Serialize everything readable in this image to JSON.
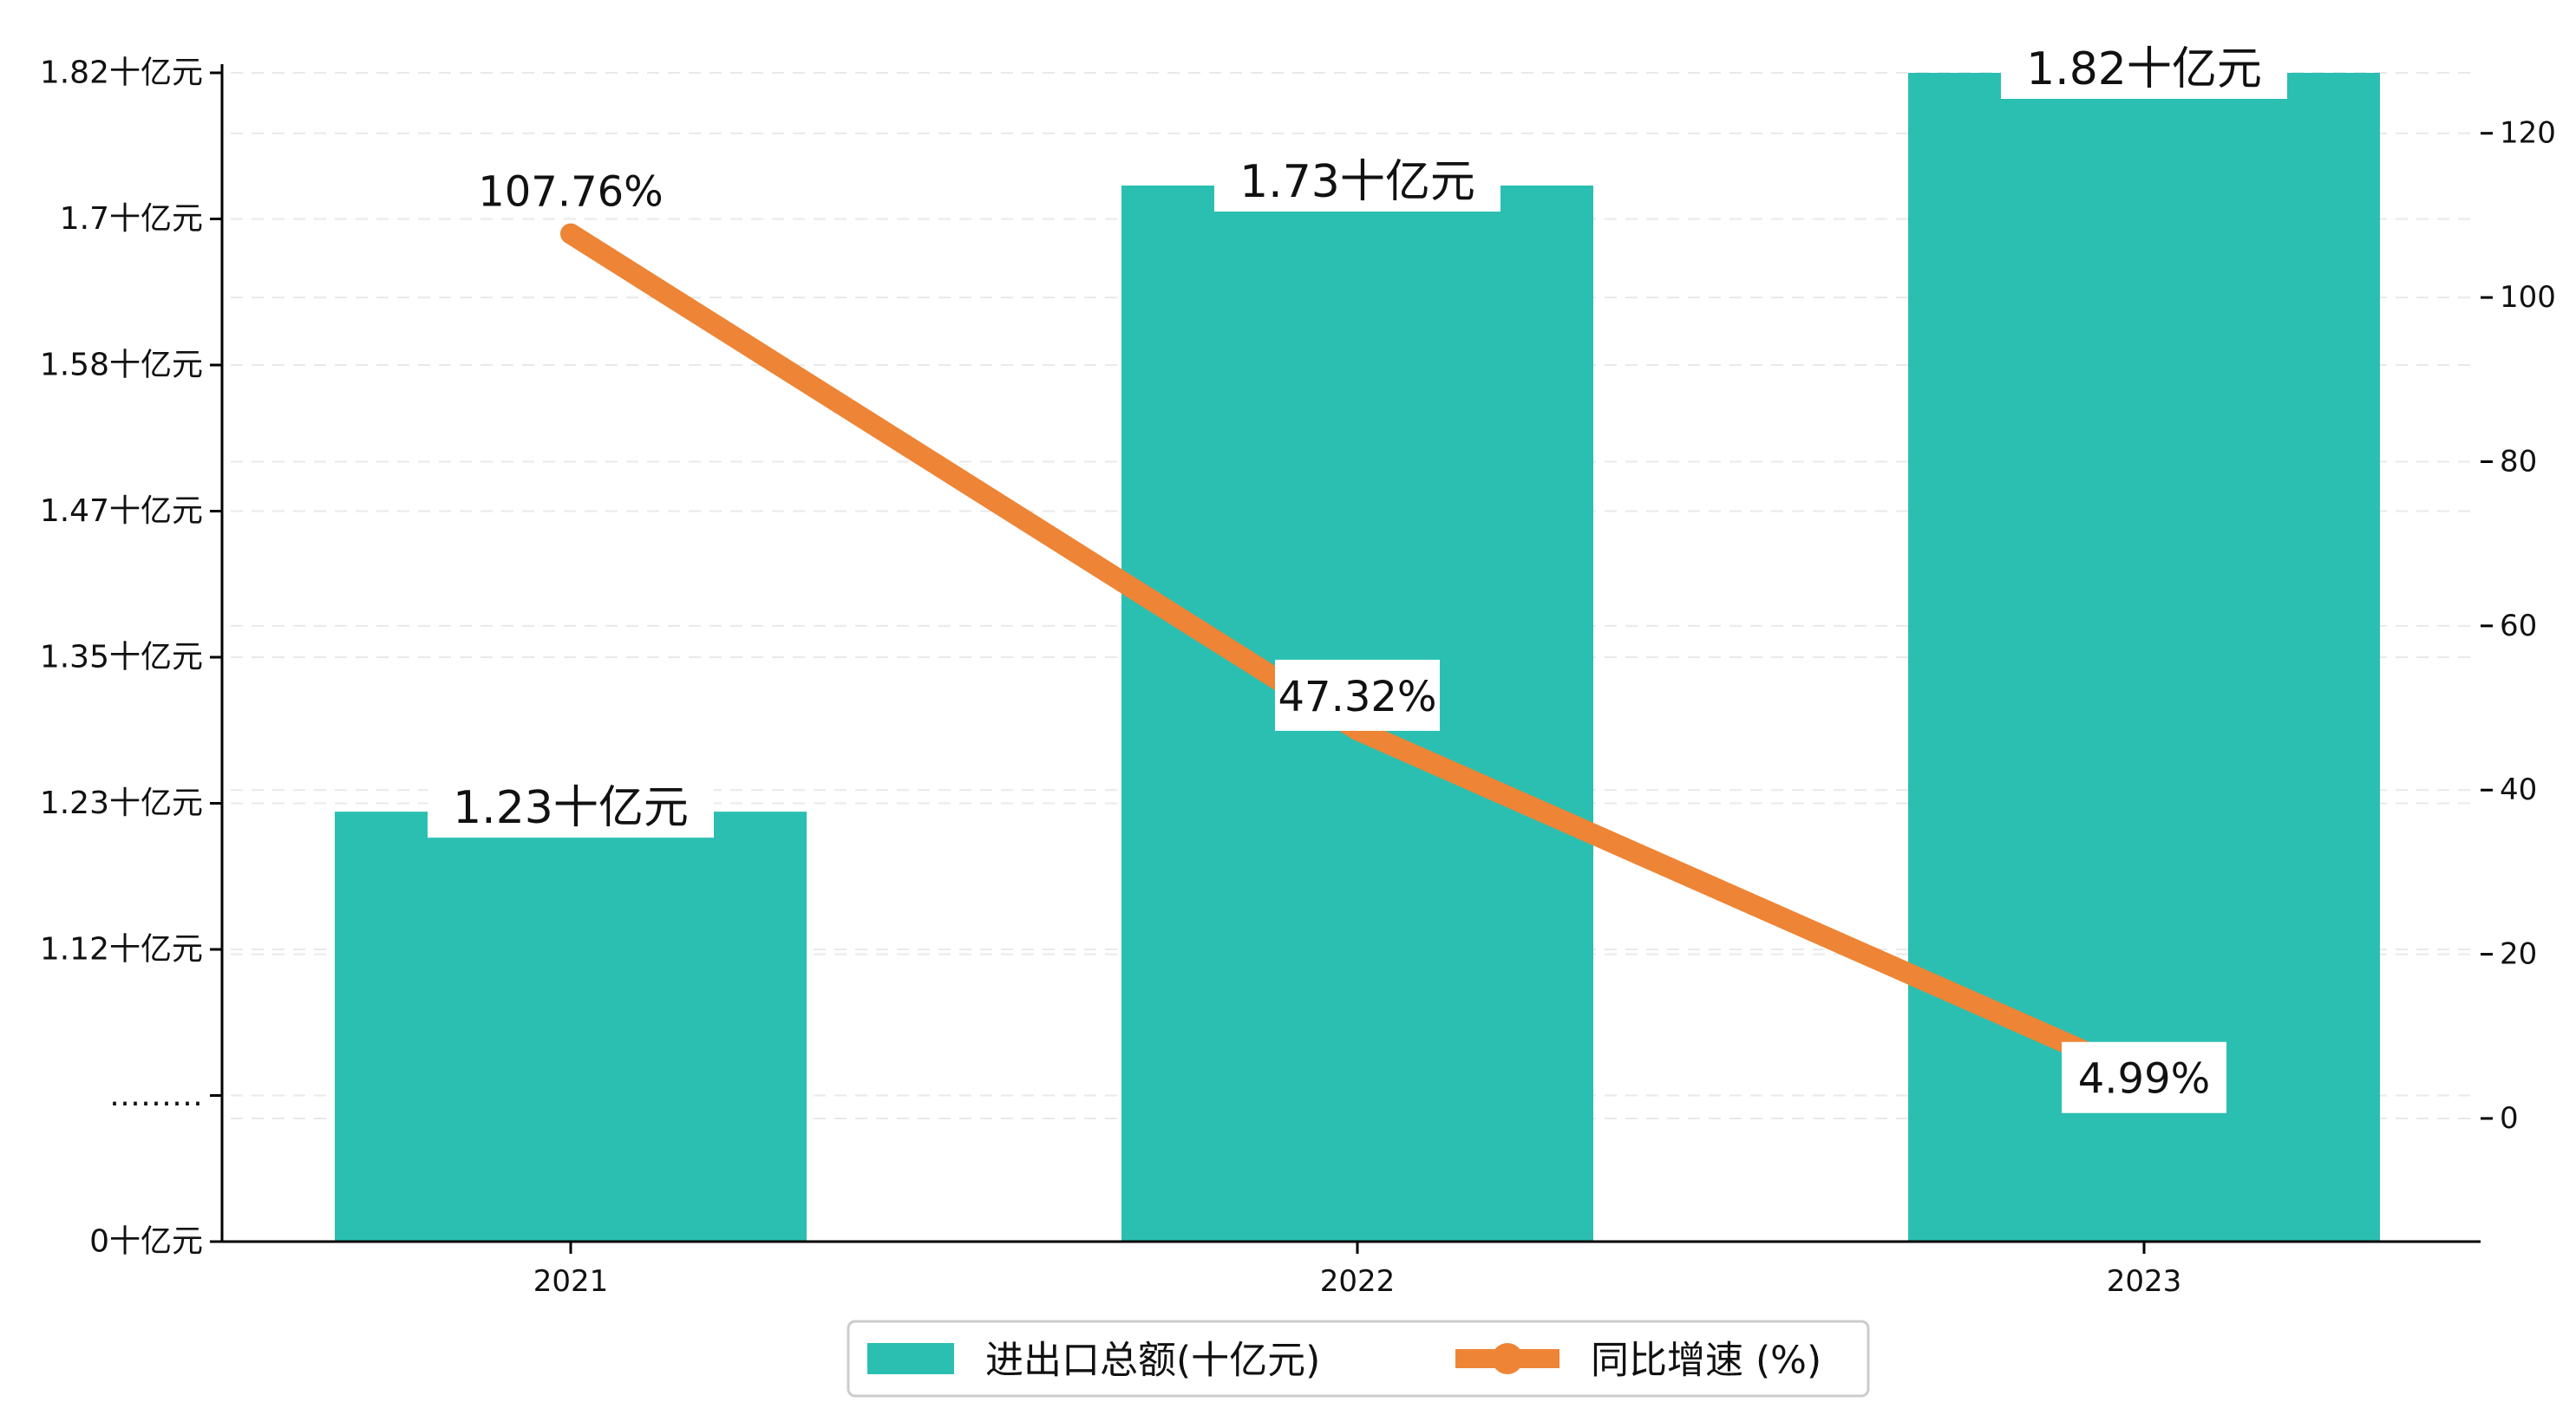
{
  "colors": {
    "bar": "#2bbfb1",
    "line": "#ee8435",
    "grid": "#e9e9e9",
    "axis": "#000000",
    "label_bg": "#ffffff"
  },
  "chart_data": {
    "type": "bar",
    "categories": [
      "2021",
      "2022",
      "2023"
    ],
    "series": [
      {
        "name": "进出口总额(十亿元)",
        "type": "bar",
        "axis": "left",
        "values": [
          1.23,
          1.73,
          1.82
        ],
        "labels": [
          "1.23十亿元",
          "1.73十亿元",
          "1.82十亿元"
        ]
      },
      {
        "name": "同比增速 (%)",
        "type": "line",
        "axis": "right",
        "values": [
          107.76,
          47.32,
          4.99
        ],
        "labels": [
          "107.76%",
          "47.32%",
          "4.99%"
        ]
      }
    ],
    "left_axis": {
      "broken": true,
      "ticks": [
        {
          "label": "0十亿元",
          "value": 0
        },
        {
          "label": "………",
          "value": null
        },
        {
          "label": "1.12十亿元",
          "value": 1.12
        },
        {
          "label": "1.23十亿元",
          "value": 1.23
        },
        {
          "label": "1.35十亿元",
          "value": 1.35
        },
        {
          "label": "1.47十亿元",
          "value": 1.47
        },
        {
          "label": "1.58十亿元",
          "value": 1.58
        },
        {
          "label": "1.7十亿元",
          "value": 1.7
        },
        {
          "label": "1.82十亿元",
          "value": 1.82
        }
      ]
    },
    "right_axis": {
      "ticks": [
        0,
        20,
        40,
        60,
        80,
        100,
        120
      ],
      "ylim": [
        -15,
        128
      ]
    },
    "grid": true,
    "legend": {
      "position": "bottom-center",
      "entries": [
        "进出口总额(十亿元)",
        "同比增速 (%)"
      ]
    }
  }
}
